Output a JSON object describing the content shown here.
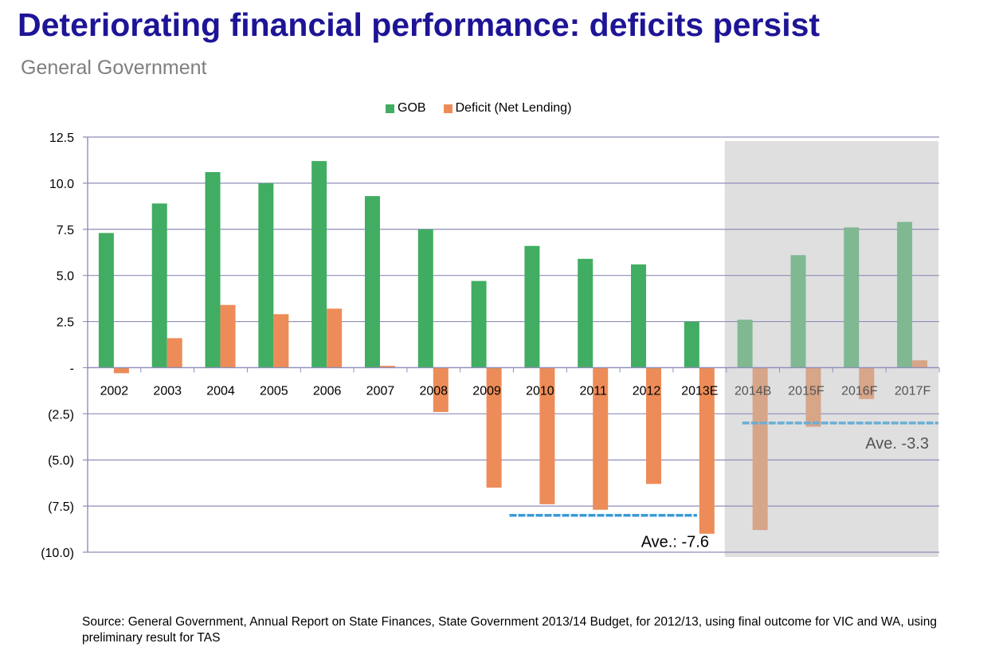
{
  "page": {
    "title": "Deteriorating financial performance: deficits persist",
    "subtitle": "General Government",
    "source_note": "Source: General Government, Annual Report on State Finances, State Government 2013/14 Budget, for 2012/13, using final outcome for VIC and WA, using preliminary result for TAS"
  },
  "colors": {
    "title": "#1e1496",
    "gob": "#41ad62",
    "deficit": "#ed8c58",
    "gob_forecast": "#7fb891",
    "deficit_forecast": "#d7a588",
    "forecast_shade": "#dfdfdf",
    "gridline": "#8e8eba",
    "average_line_actual": "#3b9ad9",
    "average_line_forecast": "#6aaed3"
  },
  "chart_data": {
    "type": "bar",
    "title": "",
    "xlabel": "",
    "ylabel": "",
    "ylim": [
      -10,
      12.5
    ],
    "yticks": [
      12.5,
      10.0,
      7.5,
      5.0,
      2.5,
      0,
      -2.5,
      -5.0,
      -7.5,
      -10.0
    ],
    "ytick_labels": [
      "12.5",
      "10.0",
      "7.5",
      "5.0",
      "2.5",
      "-",
      "(2.5)",
      "(5.0)",
      "(7.5)",
      "(10.0)"
    ],
    "grid": true,
    "legend_position": "top-center",
    "categories": [
      "2002",
      "2003",
      "2004",
      "2005",
      "2006",
      "2007",
      "2008",
      "2009",
      "2010",
      "2011",
      "2012",
      "2013E",
      "2014B",
      "2015F",
      "2016F",
      "2017F"
    ],
    "forecast_categories": [
      "2014B",
      "2015F",
      "2016F",
      "2017F"
    ],
    "series": [
      {
        "name": "GOB",
        "values": [
          7.3,
          8.9,
          10.6,
          10.0,
          11.2,
          9.3,
          7.5,
          4.7,
          6.6,
          5.9,
          5.6,
          2.5,
          2.6,
          6.1,
          7.6,
          7.9
        ]
      },
      {
        "name": "Deficit (Net Lending)",
        "values": [
          -0.3,
          1.6,
          3.4,
          2.9,
          3.2,
          0.1,
          -2.4,
          -6.5,
          -7.4,
          -7.7,
          -6.3,
          -9.0,
          -8.8,
          -3.2,
          -1.7,
          0.4
        ]
      }
    ],
    "annotations": [
      {
        "label": "Ave.: -7.6",
        "value": -7.6,
        "line_drawn_at": -8.0,
        "from_category": "2010",
        "to_category": "2013E"
      },
      {
        "label": "Ave. -3.3",
        "value": -3.3,
        "line_drawn_at": -3.0,
        "from_category": "2014B",
        "to_category": "2017F"
      }
    ]
  }
}
